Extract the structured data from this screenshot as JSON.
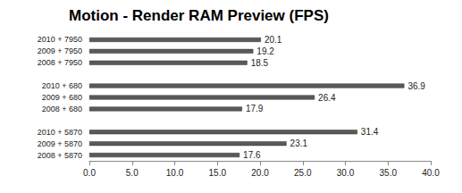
{
  "chart_data": {
    "type": "bar",
    "orientation": "horizontal",
    "title": "Motion - Render RAM Preview (FPS)",
    "categories": [
      "2010 + 7950",
      "2009 + 7950",
      "2008 + 7950",
      null,
      "2010 + 680",
      "2009 + 680",
      "2008 + 680",
      null,
      "2010 + 5870",
      "2009 + 5870",
      "2008 + 5870"
    ],
    "values": [
      20.1,
      19.2,
      18.5,
      null,
      36.9,
      26.4,
      17.9,
      null,
      31.4,
      23.1,
      17.6
    ],
    "color": "#5a5a5a",
    "xlim": [
      0,
      40
    ],
    "xticks": [
      {
        "value": 0,
        "label": "0.0"
      },
      {
        "value": 5,
        "label": "5.0"
      },
      {
        "value": 10,
        "label": "10.0"
      },
      {
        "value": 15,
        "label": "15.0"
      },
      {
        "value": 20,
        "label": "20.0"
      },
      {
        "value": 25,
        "label": "25.0"
      },
      {
        "value": 30,
        "label": "30.0"
      },
      {
        "value": 35,
        "label": "35.0"
      },
      {
        "value": 40,
        "label": "40.0"
      }
    ],
    "grid": false,
    "data_labels": true
  }
}
